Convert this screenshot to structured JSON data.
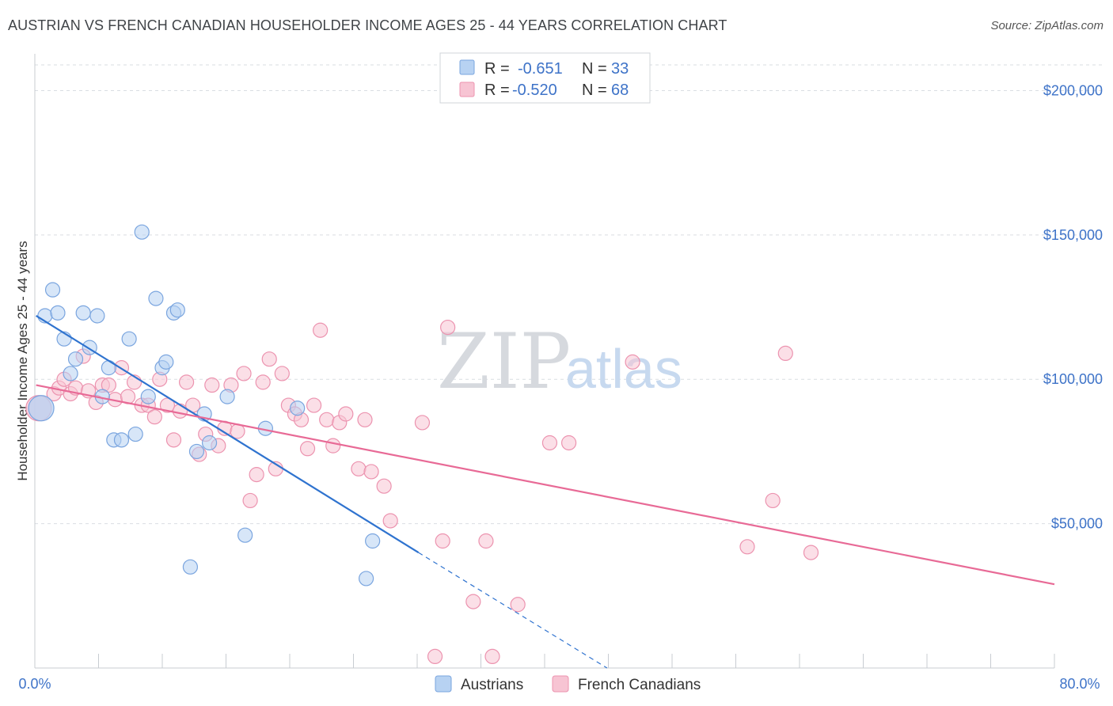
{
  "title": "AUSTRIAN VS FRENCH CANADIAN HOUSEHOLDER INCOME AGES 25 - 44 YEARS CORRELATION CHART",
  "source": "Source: ZipAtlas.com",
  "watermark": {
    "zip": "ZIP",
    "atlas": "atlas"
  },
  "legend": {
    "r_label": "R =",
    "n_label": "N =",
    "rows": [
      {
        "r": "-0.651",
        "n": "33"
      },
      {
        "r": "-0.520",
        "n": "68"
      }
    ]
  },
  "colors": {
    "austrians_fill": "#b7d2f2",
    "austrians_stroke": "#7aa5df",
    "austrians_line": "#2f73cf",
    "french_fill": "#f7c4d3",
    "french_stroke": "#ec93af",
    "french_line": "#e86a96",
    "tick_text": "#3e73c8",
    "grid": "#d9dde2"
  },
  "chart_data": {
    "type": "scatter",
    "ylabel": "Householder Income Ages 25 - 44 years",
    "xlim": [
      0,
      80
    ],
    "ylim": [
      0,
      210000
    ],
    "x_tick_labels": [
      "0.0%",
      "80.0%"
    ],
    "y_ticks": [
      {
        "value": 50000,
        "label": "$50,000"
      },
      {
        "value": 100000,
        "label": "$100,000"
      },
      {
        "value": 150000,
        "label": "$150,000"
      },
      {
        "value": 200000,
        "label": "$200,000"
      }
    ],
    "grid": true,
    "legend_position": "top-center",
    "series": [
      {
        "name": "Austrians",
        "trend": {
          "x1": 0.1,
          "y1": 122000,
          "x2": 30.1,
          "y2": 40000,
          "dash_x2": 44.9,
          "dash_y2": -1000
        },
        "points": [
          [
            0.5,
            90000
          ],
          [
            0.8,
            122000
          ],
          [
            1.4,
            131000
          ],
          [
            1.8,
            123000
          ],
          [
            2.3,
            114000
          ],
          [
            2.8,
            102000
          ],
          [
            3.2,
            107000
          ],
          [
            3.8,
            123000
          ],
          [
            4.3,
            111000
          ],
          [
            4.9,
            122000
          ],
          [
            5.3,
            94000
          ],
          [
            5.8,
            104000
          ],
          [
            6.2,
            79000
          ],
          [
            6.8,
            79000
          ],
          [
            7.4,
            114000
          ],
          [
            7.9,
            81000
          ],
          [
            8.4,
            151000
          ],
          [
            8.9,
            94000
          ],
          [
            9.5,
            128000
          ],
          [
            10.0,
            104000
          ],
          [
            10.3,
            106000
          ],
          [
            10.9,
            123000
          ],
          [
            11.2,
            124000
          ],
          [
            12.2,
            35000
          ],
          [
            12.7,
            75000
          ],
          [
            13.3,
            88000
          ],
          [
            13.7,
            78000
          ],
          [
            15.1,
            94000
          ],
          [
            16.5,
            46000
          ],
          [
            18.1,
            83000
          ],
          [
            20.6,
            90000
          ],
          [
            26.0,
            31000
          ],
          [
            26.5,
            44000
          ]
        ]
      },
      {
        "name": "French Canadians",
        "trend": {
          "x1": 0.1,
          "y1": 98000,
          "x2": 80.0,
          "y2": 29000
        },
        "points": [
          [
            0.3,
            90000
          ],
          [
            1.5,
            95000
          ],
          [
            1.9,
            97000
          ],
          [
            2.3,
            100000
          ],
          [
            2.8,
            95000
          ],
          [
            3.2,
            97000
          ],
          [
            3.8,
            108000
          ],
          [
            4.2,
            96000
          ],
          [
            4.8,
            92000
          ],
          [
            5.3,
            98000
          ],
          [
            5.8,
            98000
          ],
          [
            6.3,
            93000
          ],
          [
            6.8,
            104000
          ],
          [
            7.3,
            94000
          ],
          [
            7.8,
            99000
          ],
          [
            8.4,
            91000
          ],
          [
            8.9,
            91000
          ],
          [
            9.4,
            87000
          ],
          [
            9.8,
            100000
          ],
          [
            10.4,
            91000
          ],
          [
            10.9,
            79000
          ],
          [
            11.4,
            89000
          ],
          [
            11.9,
            99000
          ],
          [
            12.4,
            91000
          ],
          [
            12.9,
            74000
          ],
          [
            13.4,
            81000
          ],
          [
            13.9,
            98000
          ],
          [
            14.4,
            77000
          ],
          [
            14.9,
            83000
          ],
          [
            15.4,
            98000
          ],
          [
            15.9,
            82000
          ],
          [
            16.4,
            102000
          ],
          [
            16.9,
            58000
          ],
          [
            17.4,
            67000
          ],
          [
            17.9,
            99000
          ],
          [
            18.4,
            107000
          ],
          [
            18.9,
            69000
          ],
          [
            19.4,
            102000
          ],
          [
            19.9,
            91000
          ],
          [
            20.4,
            88000
          ],
          [
            20.9,
            86000
          ],
          [
            21.4,
            76000
          ],
          [
            21.9,
            91000
          ],
          [
            22.4,
            117000
          ],
          [
            22.9,
            86000
          ],
          [
            23.4,
            77000
          ],
          [
            23.9,
            85000
          ],
          [
            24.4,
            88000
          ],
          [
            25.4,
            69000
          ],
          [
            25.9,
            86000
          ],
          [
            26.4,
            68000
          ],
          [
            27.4,
            63000
          ],
          [
            27.9,
            51000
          ],
          [
            30.4,
            85000
          ],
          [
            31.4,
            4000
          ],
          [
            32.0,
            44000
          ],
          [
            32.4,
            118000
          ],
          [
            34.4,
            23000
          ],
          [
            35.4,
            44000
          ],
          [
            35.9,
            4000
          ],
          [
            37.9,
            22000
          ],
          [
            40.4,
            78000
          ],
          [
            41.9,
            78000
          ],
          [
            46.9,
            106000
          ],
          [
            55.9,
            42000
          ],
          [
            57.9,
            58000
          ],
          [
            58.9,
            109000
          ],
          [
            60.9,
            40000
          ]
        ]
      }
    ]
  }
}
